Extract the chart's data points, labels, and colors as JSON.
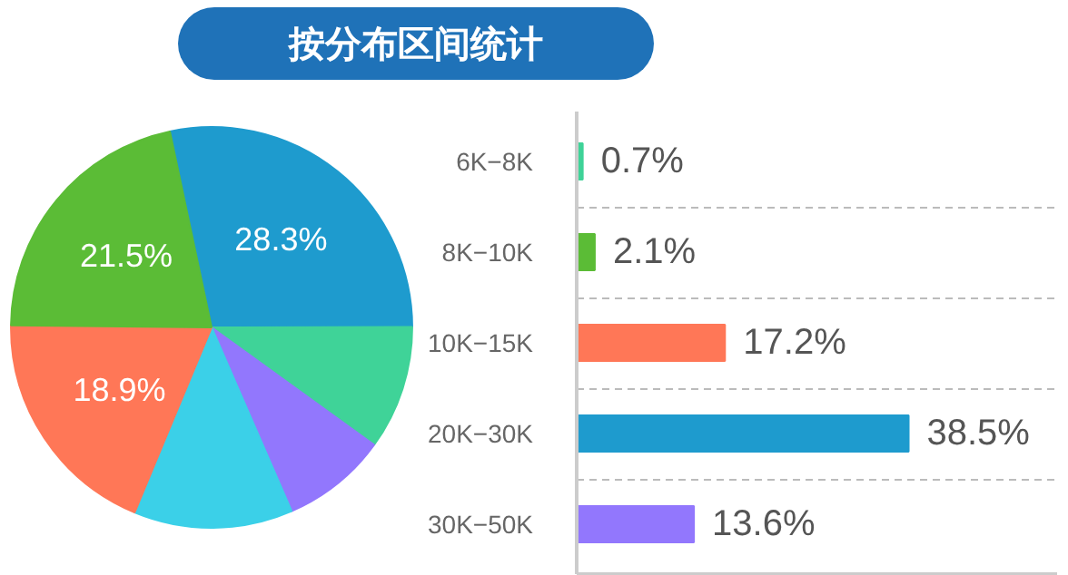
{
  "chart_data": [
    {
      "type": "pie",
      "title": "按分布区间统计",
      "categories": [
        null,
        null,
        null,
        null,
        null,
        null
      ],
      "values": [
        28.3,
        10.0,
        8.5,
        12.8,
        18.9,
        21.5
      ],
      "colors": [
        "#1e9bce",
        "#3fd398",
        "#9277fd",
        "#3bd0e8",
        "#ff7757",
        "#5bbc36"
      ],
      "value_labels": [
        "28.3%",
        null,
        null,
        null,
        "18.9%",
        "21.5%"
      ]
    },
    {
      "type": "bar",
      "orientation": "horizontal",
      "categories": [
        "6K−8K",
        "8K−10K",
        "10K−15K",
        "20K−30K",
        "30K−50K"
      ],
      "values": [
        0.7,
        2.1,
        17.2,
        38.5,
        13.6
      ],
      "colors": [
        "#3fd398",
        "#5bbc36",
        "#ff7757",
        "#1e9bce",
        "#9277fd"
      ],
      "value_labels": [
        "0.7%",
        "2.1%",
        "17.2%",
        "38.5%",
        "13.6%"
      ],
      "grid": "y"
    }
  ]
}
